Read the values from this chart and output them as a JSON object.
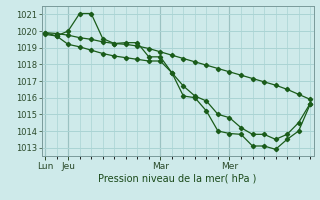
{
  "title": "Pression niveau de la mer( hPa )",
  "bg_color": "#ceeaea",
  "grid_color": "#aad4d4",
  "line_color": "#1a5c1a",
  "ylim": [
    1012.5,
    1021.5
  ],
  "yticks": [
    1013,
    1014,
    1015,
    1016,
    1017,
    1018,
    1019,
    1020,
    1021
  ],
  "xtick_labels": [
    "Lun",
    "Jeu",
    "Mar",
    "Mer"
  ],
  "xtick_positions": [
    0,
    2,
    10,
    16
  ],
  "vline_positions": [
    0,
    2,
    10,
    16
  ],
  "n_points": 24,
  "series1": [
    1019.8,
    1019.7,
    1020.0,
    1021.05,
    1021.05,
    1019.55,
    1019.25,
    1019.3,
    1019.3,
    1018.45,
    1018.45,
    1017.5,
    1016.1,
    1016.0,
    1015.2,
    1014.0,
    1013.85,
    1013.8,
    1013.1,
    1013.1,
    1012.9,
    1013.5,
    1014.0,
    1015.6
  ],
  "series2": [
    1019.9,
    1019.7,
    1019.2,
    1019.05,
    1018.85,
    1018.65,
    1018.5,
    1018.4,
    1018.3,
    1018.2,
    1018.2,
    1017.5,
    1016.7,
    1016.1,
    1015.8,
    1015.0,
    1014.8,
    1014.2,
    1013.8,
    1013.8,
    1013.5,
    1013.8,
    1014.5,
    1015.65
  ],
  "series3": [
    1019.9,
    1019.85,
    1019.75,
    1019.6,
    1019.5,
    1019.35,
    1019.25,
    1019.2,
    1019.1,
    1018.95,
    1018.75,
    1018.55,
    1018.35,
    1018.15,
    1017.95,
    1017.75,
    1017.55,
    1017.35,
    1017.15,
    1016.95,
    1016.75,
    1016.5,
    1016.2,
    1015.9
  ]
}
